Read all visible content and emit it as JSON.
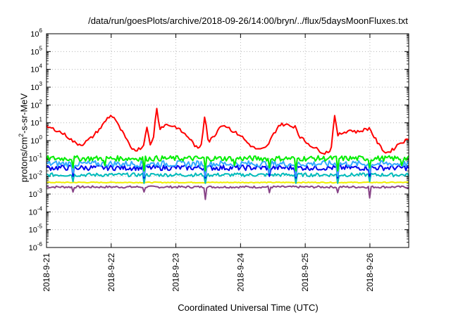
{
  "chart_data": {
    "type": "line",
    "title": "/data/run/goesPlots/archive/2018-09-26/14:00/bryn/../flux/5daysMoonFluxes.txt",
    "xlabel": "Coordinated Universal Time (UTC)",
    "ylabel": {
      "pre": "protons/cm",
      "sup": "2",
      "post": "-s-sr-MeV"
    },
    "y_scale": "log",
    "ylim_exp": [
      -6,
      6
    ],
    "y_tick_exponents": [
      -6,
      -5,
      -4,
      -3,
      -2,
      -1,
      0,
      1,
      2,
      3,
      4,
      5,
      6
    ],
    "xlim_days": [
      0,
      5.6
    ],
    "x_ticks": [
      {
        "day": 0,
        "label": "2018-9-21"
      },
      {
        "day": 1,
        "label": "2018-9-22"
      },
      {
        "day": 2,
        "label": "2018-9-23"
      },
      {
        "day": 3,
        "label": "2018-9-24"
      },
      {
        "day": 4,
        "label": "2018-9-25"
      },
      {
        "day": 5,
        "label": "2018-9-26"
      }
    ],
    "grid": true,
    "series": [
      {
        "color": "#ff0000",
        "points": [
          [
            0,
            6
          ],
          [
            0.15,
            4
          ],
          [
            0.3,
            2
          ],
          [
            0.45,
            0.7
          ],
          [
            0.55,
            0.6
          ],
          [
            0.7,
            1.5
          ],
          [
            0.85,
            6
          ],
          [
            0.95,
            20
          ],
          [
            1.0,
            25
          ],
          [
            1.05,
            20
          ],
          [
            1.1,
            8
          ],
          [
            1.2,
            2
          ],
          [
            1.3,
            0.4
          ],
          [
            1.4,
            0.3
          ],
          [
            1.5,
            0.5
          ],
          [
            1.55,
            8
          ],
          [
            1.6,
            0.5
          ],
          [
            1.65,
            1.2
          ],
          [
            1.7,
            80
          ],
          [
            1.75,
            5
          ],
          [
            1.85,
            8
          ],
          [
            2.0,
            6
          ],
          [
            2.1,
            3
          ],
          [
            2.2,
            1.5
          ],
          [
            2.3,
            0.5
          ],
          [
            2.35,
            0.3
          ],
          [
            2.4,
            0.8
          ],
          [
            2.45,
            40
          ],
          [
            2.5,
            0.8
          ],
          [
            2.6,
            2
          ],
          [
            2.7,
            8
          ],
          [
            2.8,
            6
          ],
          [
            2.9,
            3
          ],
          [
            3.0,
            2
          ],
          [
            3.1,
            0.8
          ],
          [
            3.2,
            0.4
          ],
          [
            3.3,
            0.3
          ],
          [
            3.4,
            0.4
          ],
          [
            3.5,
            2
          ],
          [
            3.6,
            8
          ],
          [
            3.7,
            8
          ],
          [
            3.8,
            6
          ],
          [
            3.85,
            7
          ],
          [
            3.9,
            2
          ],
          [
            4.0,
            0.9
          ],
          [
            4.1,
            0.5
          ],
          [
            4.2,
            0.3
          ],
          [
            4.3,
            0.2
          ],
          [
            4.4,
            0.3
          ],
          [
            4.45,
            30
          ],
          [
            4.5,
            2
          ],
          [
            4.6,
            3
          ],
          [
            4.7,
            4
          ],
          [
            4.8,
            3
          ],
          [
            4.9,
            4
          ],
          [
            5.0,
            5
          ],
          [
            5.05,
            2
          ],
          [
            5.15,
            0.5
          ],
          [
            5.25,
            0.2
          ],
          [
            5.35,
            0.3
          ],
          [
            5.45,
            0.7
          ],
          [
            5.55,
            1.0
          ],
          [
            5.6,
            1.2
          ]
        ]
      },
      {
        "color": "#00ee00",
        "base": 0.1,
        "noise": 0.3,
        "dips": [
          [
            0.4,
            0.03
          ],
          [
            0.9,
            0.04
          ],
          [
            1.5,
            0.02
          ],
          [
            2.45,
            0.02
          ],
          [
            2.9,
            0.04
          ],
          [
            3.45,
            0.03
          ],
          [
            3.85,
            0.02
          ],
          [
            4.5,
            0.02
          ],
          [
            5.0,
            0.03
          ],
          [
            5.5,
            0.04
          ]
        ]
      },
      {
        "color": "#33aaff",
        "base": 0.05,
        "noise": 0.35,
        "dips": [
          [
            0.4,
            0.015
          ],
          [
            1.5,
            0.01
          ],
          [
            2.45,
            0.01
          ],
          [
            3.45,
            0.015
          ],
          [
            3.85,
            0.01
          ],
          [
            4.5,
            0.01
          ],
          [
            5.0,
            0.015
          ]
        ]
      },
      {
        "color": "#0000ee",
        "base": 0.03,
        "noise": 0.3,
        "dips": [
          [
            0.4,
            0.01
          ],
          [
            1.5,
            0.008
          ],
          [
            2.45,
            0.008
          ],
          [
            3.45,
            0.01
          ],
          [
            3.85,
            0.008
          ],
          [
            4.5,
            0.008
          ],
          [
            5.0,
            0.01
          ]
        ]
      },
      {
        "color": "#00bbbb",
        "base": 0.012,
        "noise": 0.2,
        "dips": [
          [
            0.4,
            0.005
          ],
          [
            1.5,
            0.004
          ],
          [
            2.45,
            0.004
          ],
          [
            3.85,
            0.004
          ],
          [
            4.5,
            0.004
          ],
          [
            5.0,
            0.005
          ]
        ]
      },
      {
        "color": "#eeee00",
        "base": 0.0045,
        "noise": 0.05,
        "dips": []
      },
      {
        "color": "#884488",
        "base": 0.0025,
        "noise": 0.12,
        "dips": [
          [
            0.4,
            0.0013
          ],
          [
            1.5,
            0.0013
          ],
          [
            2.45,
            0.0005
          ],
          [
            3.45,
            0.0012
          ],
          [
            4.5,
            0.0012
          ],
          [
            5.0,
            0.0006
          ]
        ]
      }
    ]
  }
}
